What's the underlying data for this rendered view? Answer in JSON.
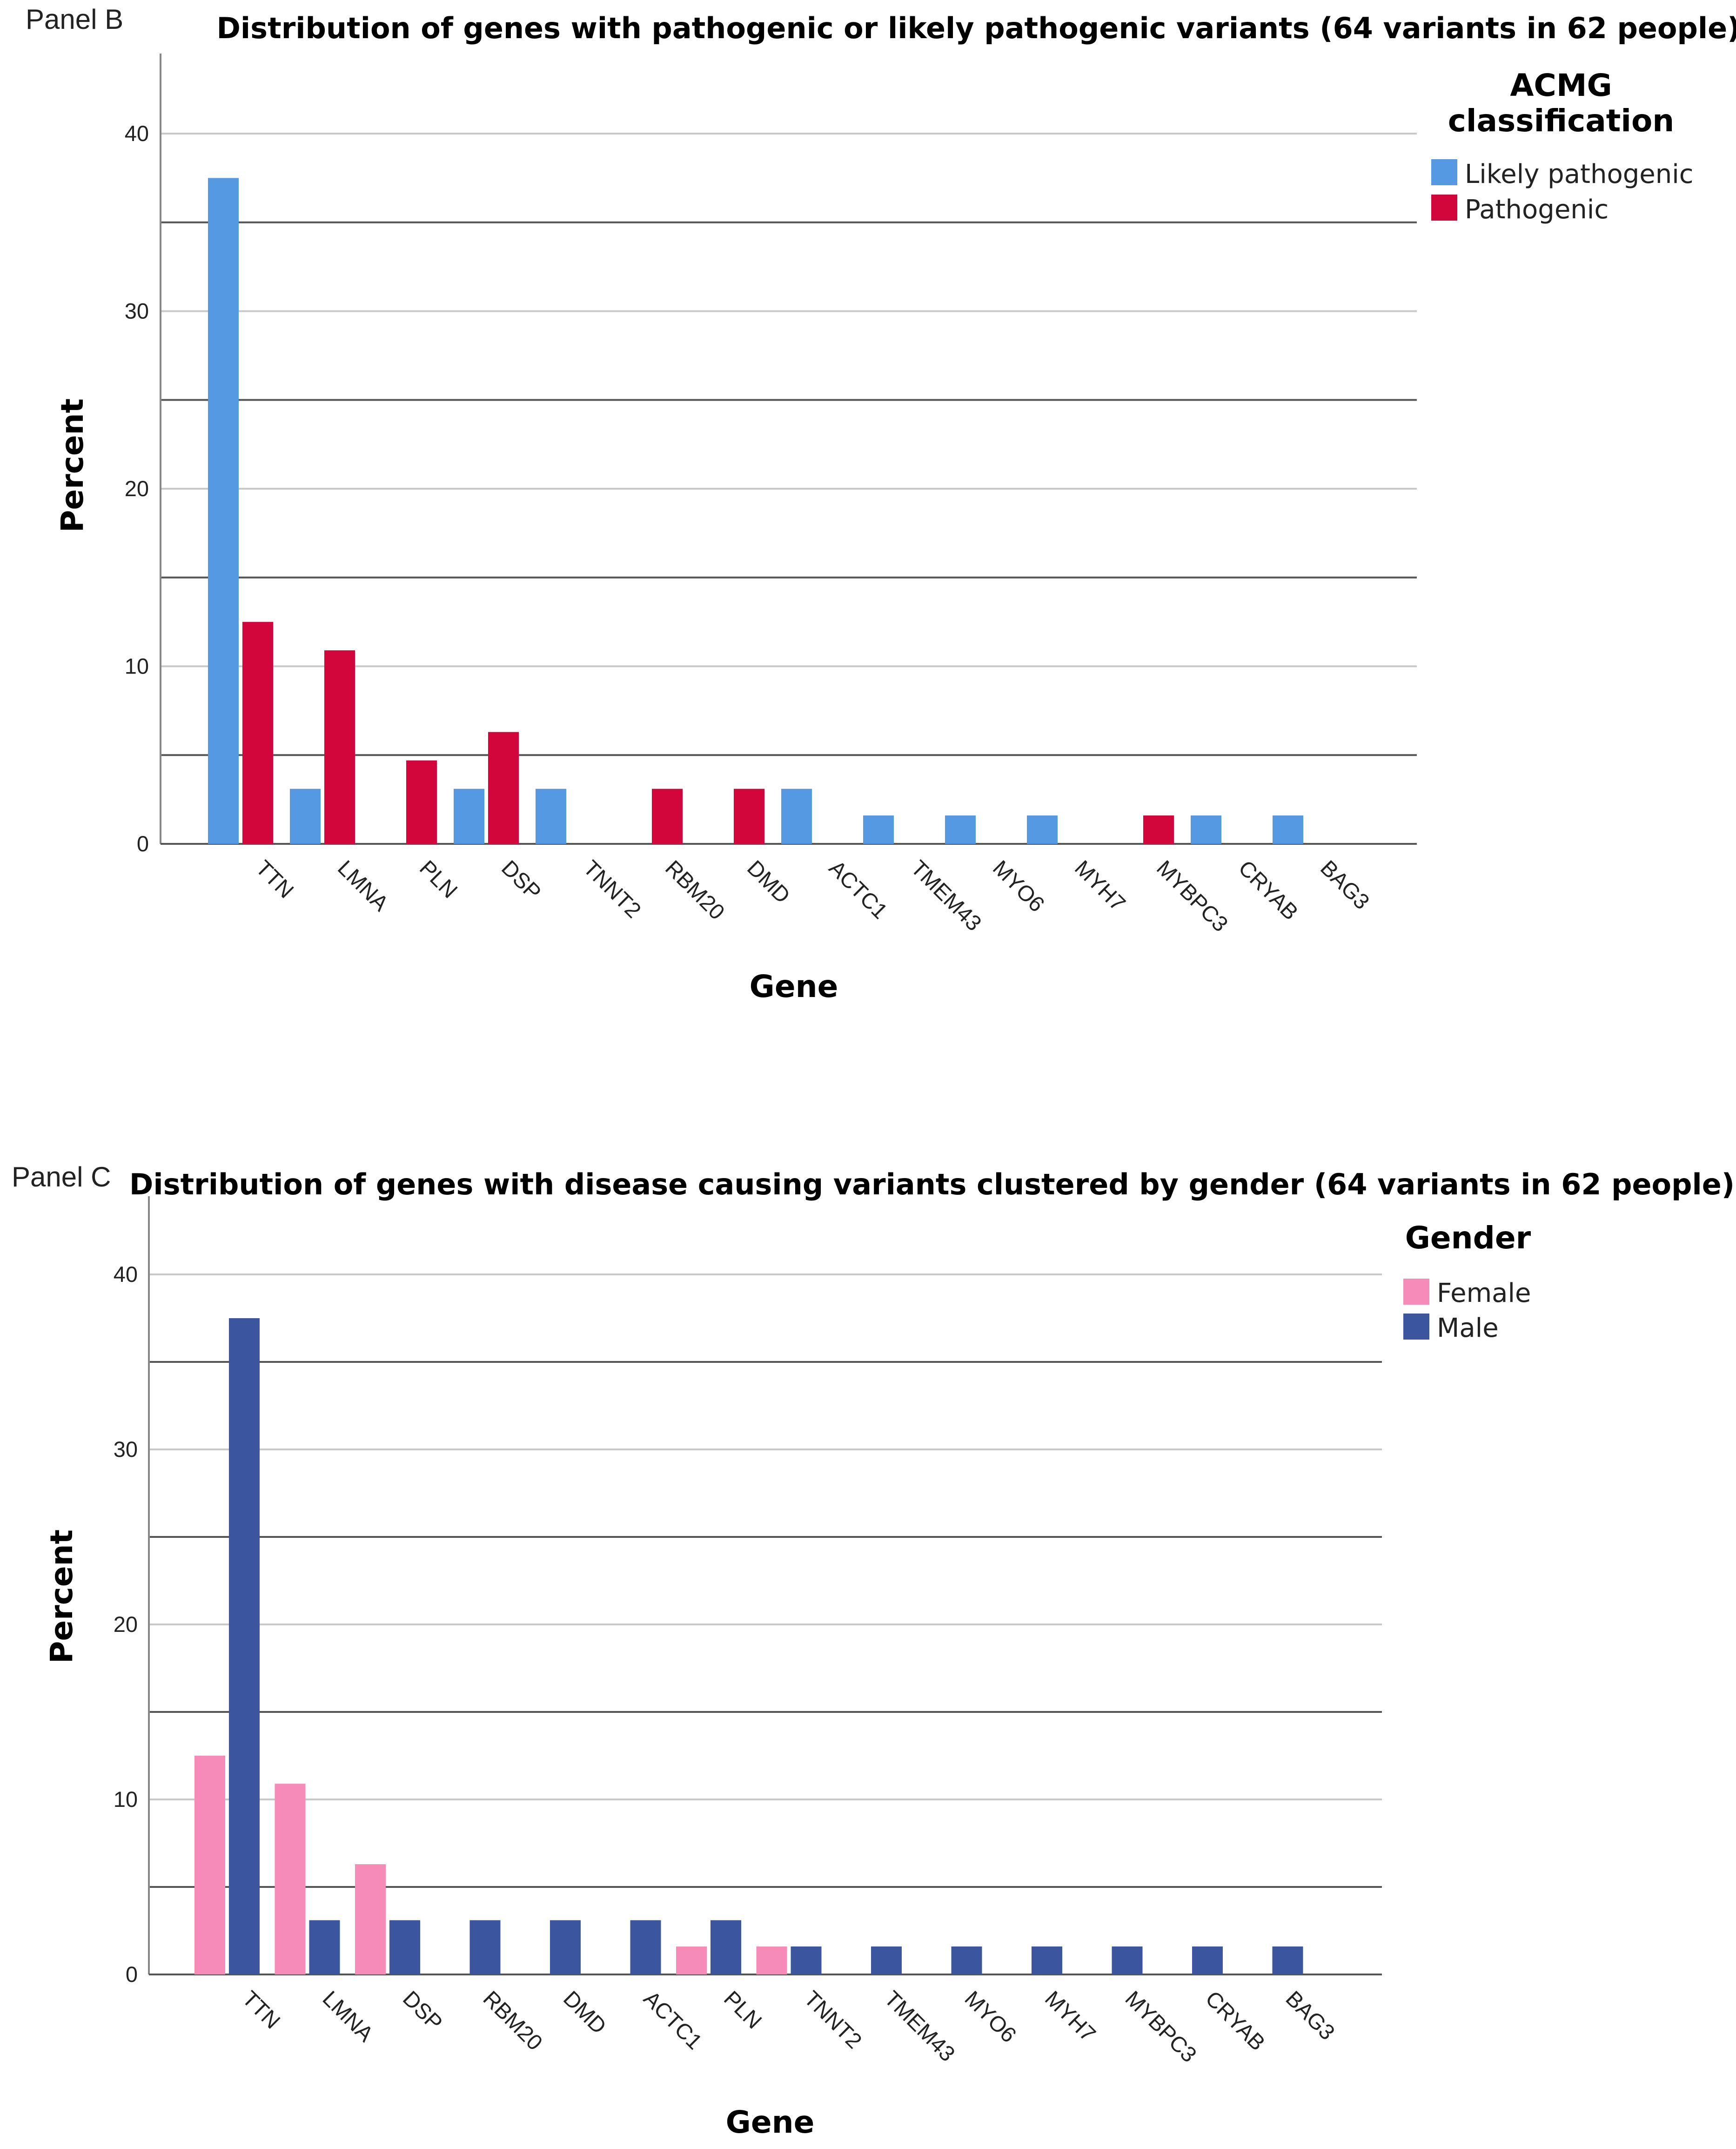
{
  "figure": {
    "panels": [
      {
        "panel_label": "Panel B",
        "legend": {
          "title_lines": [
            "ACMG",
            "classification"
          ]
        }
      },
      {
        "panel_label": "Panel C",
        "legend": {
          "title_lines": [
            "Gender"
          ]
        }
      }
    ]
  },
  "chart_data": [
    {
      "type": "bar",
      "title": "Distribution of genes with pathogenic or likely pathogenic variants (64 variants in 62 people)",
      "xlabel": "Gene",
      "ylabel": "Percent",
      "ylim": [
        0,
        44
      ],
      "yticks": [
        0,
        10,
        20,
        30,
        40
      ],
      "grid_minor": [
        5,
        15,
        25,
        35
      ],
      "legend_position": "top-right",
      "categories": [
        "TTN",
        "LMNA",
        "PLN",
        "DSP",
        "TNNT2",
        "RBM20",
        "DMD",
        "ACTC1",
        "TMEM43",
        "MYO6",
        "MYH7",
        "MYBPC3",
        "CRYAB",
        "BAG3"
      ],
      "series": [
        {
          "name": "Likely pathogenic",
          "color": "#5599e3",
          "values": [
            37.5,
            3.1,
            0,
            3.1,
            3.1,
            0,
            0,
            3.1,
            1.6,
            1.6,
            1.6,
            0,
            1.6,
            1.6
          ]
        },
        {
          "name": "Pathogenic",
          "color": "#d2063a",
          "values": [
            12.5,
            10.9,
            4.7,
            6.3,
            0,
            3.1,
            3.1,
            0,
            0,
            0,
            0,
            1.6,
            0,
            0
          ]
        }
      ]
    },
    {
      "type": "bar",
      "title": "Distribution of genes with disease causing variants clustered by gender (64 variants in 62 people)",
      "xlabel": "Gene",
      "ylabel": "Percent",
      "ylim": [
        0,
        44
      ],
      "yticks": [
        0,
        10,
        20,
        30,
        40
      ],
      "grid_minor": [
        5,
        15,
        25,
        35
      ],
      "legend_position": "top-right",
      "categories": [
        "TTN",
        "LMNA",
        "DSP",
        "RBM20",
        "DMD",
        "ACTC1",
        "PLN",
        "TNNT2",
        "TMEM43",
        "MYO6",
        "MYH7",
        "MYBPC3",
        "CRYAB",
        "BAG3"
      ],
      "series": [
        {
          "name": "Female",
          "color": "#f78bb8",
          "values": [
            12.5,
            10.9,
            6.3,
            0,
            0,
            0,
            1.6,
            1.6,
            0,
            0,
            0,
            0,
            0,
            0
          ]
        },
        {
          "name": "Male",
          "color": "#3b559f",
          "values": [
            37.5,
            3.1,
            3.1,
            3.1,
            3.1,
            3.1,
            3.1,
            1.6,
            1.6,
            1.6,
            1.6,
            1.6,
            1.6,
            1.6
          ]
        }
      ]
    }
  ]
}
